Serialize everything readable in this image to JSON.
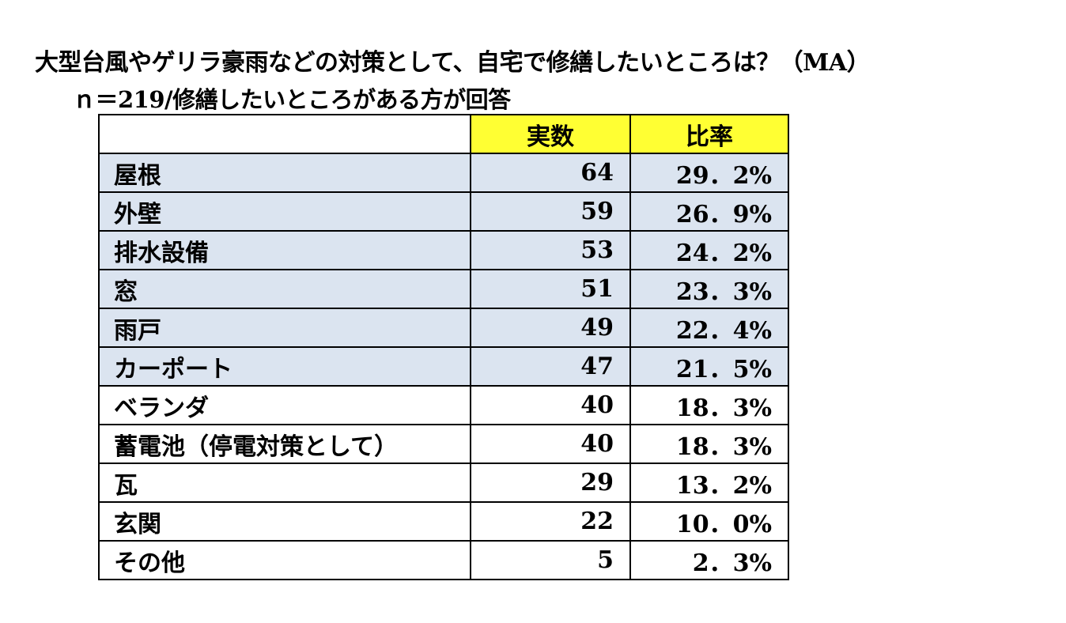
{
  "title": "大型台風やゲリラ豪雨などの対策として、自宅で修繕したいところは？（MA）",
  "subtitle": "ｎ＝219/修繕したいところがある方が回答",
  "chart_data": {
    "type": "table",
    "columns": [
      "",
      "実数",
      "比率"
    ],
    "rows": [
      {
        "label": "屋根",
        "count": "64",
        "ratio": "29．2%",
        "highlight": true
      },
      {
        "label": "外壁",
        "count": "59",
        "ratio": "26．9%",
        "highlight": true
      },
      {
        "label": "排水設備",
        "count": "53",
        "ratio": "24．2%",
        "highlight": true
      },
      {
        "label": "窓",
        "count": "51",
        "ratio": "23．3%",
        "highlight": true
      },
      {
        "label": "雨戸",
        "count": "49",
        "ratio": "22．4%",
        "highlight": true
      },
      {
        "label": "カーポート",
        "count": "47",
        "ratio": "21．5%",
        "highlight": true
      },
      {
        "label": "ベランダ",
        "count": "40",
        "ratio": "18．3%",
        "highlight": false
      },
      {
        "label": "蓄電池（停電対策として）",
        "count": "40",
        "ratio": "18．3%",
        "highlight": false
      },
      {
        "label": "瓦",
        "count": "29",
        "ratio": "13．2%",
        "highlight": false
      },
      {
        "label": "玄関",
        "count": "22",
        "ratio": "10．0%",
        "highlight": false
      },
      {
        "label": "その他",
        "count": "5",
        "ratio": "2．3%",
        "highlight": false
      }
    ],
    "colors": {
      "header": "#ffff33",
      "highlight": "#dbe4f0"
    }
  }
}
